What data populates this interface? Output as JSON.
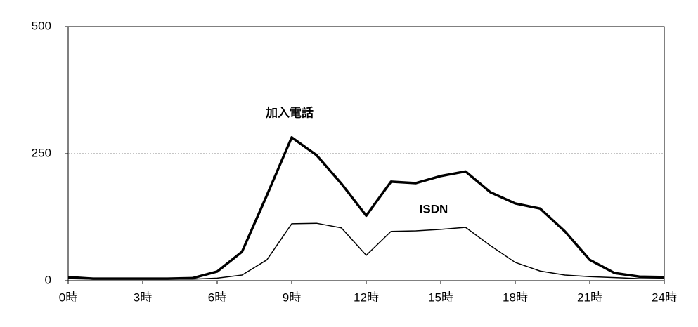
{
  "chart_data": {
    "type": "line",
    "x": [
      0,
      1,
      2,
      3,
      4,
      5,
      6,
      7,
      8,
      9,
      10,
      11,
      12,
      13,
      14,
      15,
      16,
      17,
      18,
      19,
      20,
      21,
      22,
      23,
      24
    ],
    "series": [
      {
        "name": "加入電話",
        "color": "#000000",
        "width": 3.5,
        "values": [
          7,
          4,
          4,
          4,
          4,
          5,
          18,
          57,
          168,
          282,
          247,
          191,
          128,
          195,
          192,
          206,
          215,
          174,
          152,
          142,
          97,
          41,
          15,
          8,
          7
        ]
      },
      {
        "name": "ISDN",
        "color": "#000000",
        "width": 1.5,
        "values": [
          4,
          3,
          3,
          3,
          3,
          3,
          5,
          11,
          41,
          112,
          113,
          104,
          50,
          97,
          98,
          101,
          105,
          69,
          36,
          19,
          11,
          8,
          6,
          4,
          4
        ]
      }
    ],
    "xlim": [
      0,
      24
    ],
    "xticks": [
      {
        "value": 0,
        "label": "0時"
      },
      {
        "value": 3,
        "label": "3時"
      },
      {
        "value": 6,
        "label": "6時"
      },
      {
        "value": 9,
        "label": "9時"
      },
      {
        "value": 12,
        "label": "12時"
      },
      {
        "value": 15,
        "label": "15時"
      },
      {
        "value": 18,
        "label": "18時"
      },
      {
        "value": 21,
        "label": "21時"
      },
      {
        "value": 24,
        "label": "24時"
      }
    ],
    "ylim": [
      0,
      500
    ],
    "yticks": [
      0,
      250,
      500
    ],
    "grid": true
  }
}
